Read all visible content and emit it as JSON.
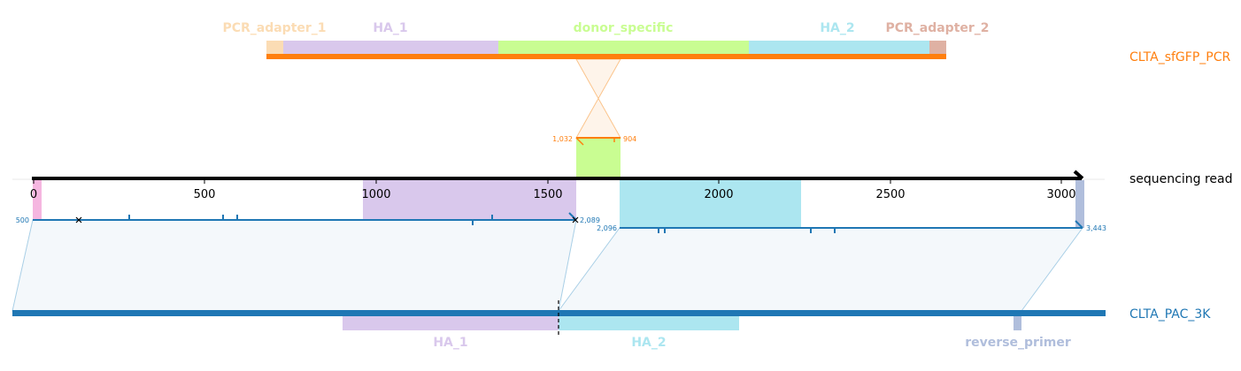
{
  "tracks": {
    "top": {
      "name": "CLTA_sfGFP_PCR",
      "color": "#ff7f0e"
    },
    "read": {
      "name": "sequencing read",
      "color": "#000000"
    },
    "bottom": {
      "name": "CLTA_PAC_3K",
      "color": "#1f77b4"
    }
  },
  "top_features": [
    {
      "label": "PCR_adapter_1",
      "color": "#fbdcb4"
    },
    {
      "label": "HA_1",
      "color": "#d9c8ec"
    },
    {
      "label": "donor_specific",
      "color": "#c9fd92"
    },
    {
      "label": "HA_2",
      "color": "#ace6f0"
    },
    {
      "label": "PCR_adapter_2",
      "color": "#dfb1a3"
    }
  ],
  "bottom_features": [
    {
      "label": "HA_1",
      "color": "#d9c8ec"
    },
    {
      "label": "HA_2",
      "color": "#ace6f0"
    },
    {
      "label": "reverse_primer",
      "color": "#b0bedc"
    }
  ],
  "read_axis": {
    "ticks": [
      "0",
      "500",
      "1000",
      "1500",
      "2000",
      "2500",
      "3000"
    ]
  },
  "alignments": {
    "top_align": {
      "start_label": "1,032",
      "end_label": "904"
    },
    "left_align": {
      "start_label": "500",
      "end_label": "2,089"
    },
    "right_align": {
      "start_label": "2,096",
      "end_label": "3,443"
    }
  }
}
